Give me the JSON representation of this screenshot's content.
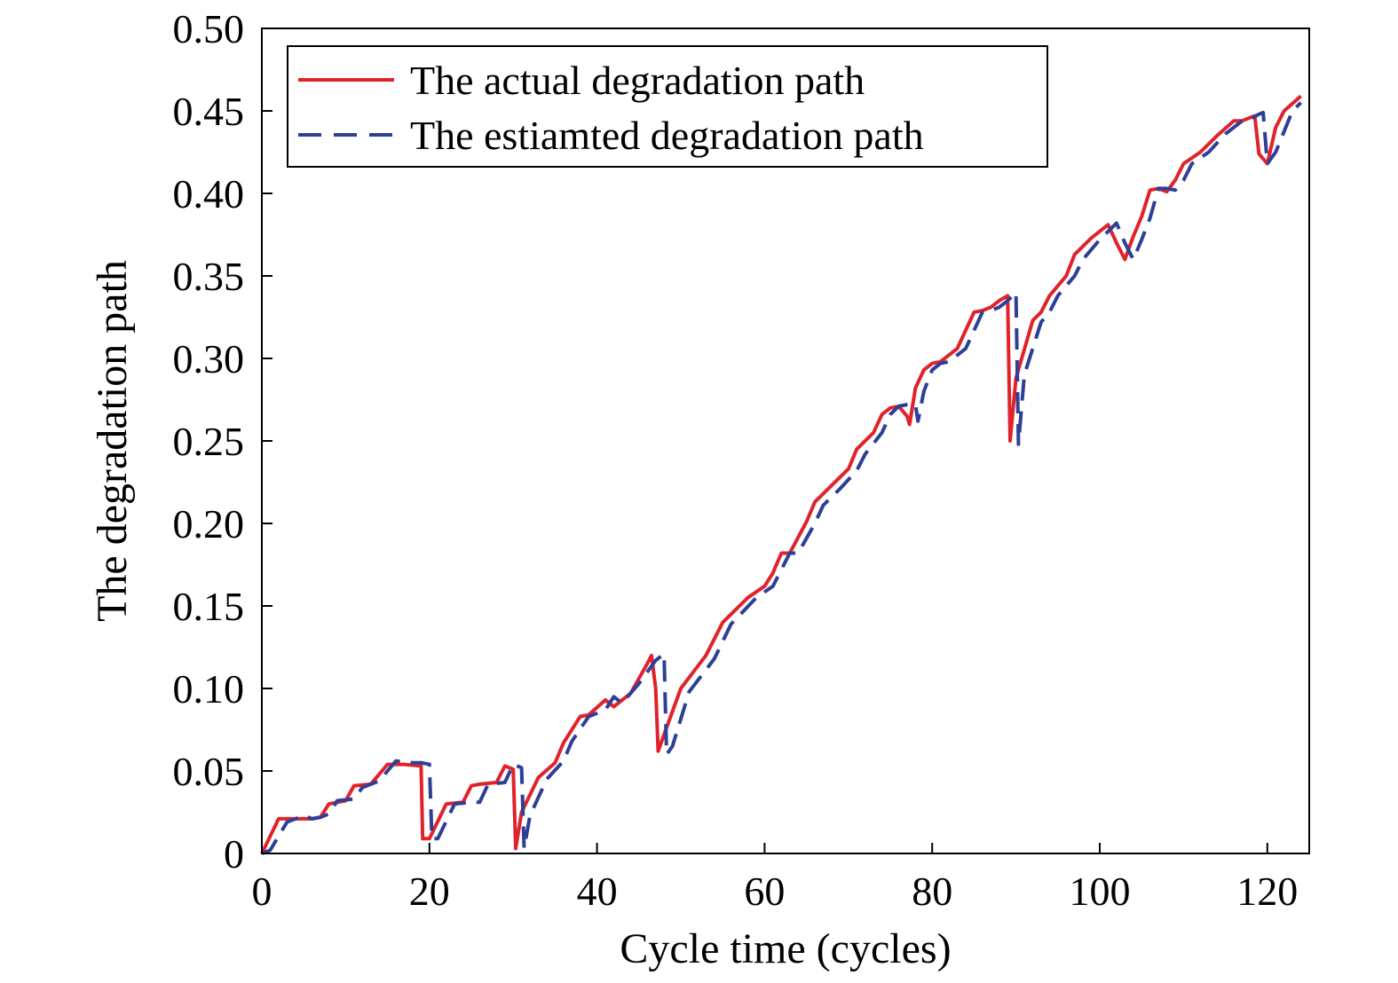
{
  "chart_data": {
    "type": "line",
    "xlabel": "Cycle time (cycles)",
    "ylabel": "The degradation path",
    "xlim": [
      0,
      125
    ],
    "ylim": [
      0,
      0.5
    ],
    "xticks": [
      0,
      20,
      40,
      60,
      80,
      100,
      120
    ],
    "xtick_labels": [
      "0",
      "20",
      "40",
      "60",
      "80",
      "100",
      "120"
    ],
    "yticks": [
      0,
      0.05,
      0.1,
      0.15,
      0.2,
      0.25,
      0.3,
      0.35,
      0.4,
      0.45,
      0.5
    ],
    "ytick_labels": [
      "0",
      "0.05",
      "0.10",
      "0.15",
      "0.20",
      "0.25",
      "0.30",
      "0.35",
      "0.40",
      "0.45",
      "0.50"
    ],
    "grid": false,
    "legend_position": "top-left",
    "series": [
      {
        "name": "The actual degradation path",
        "color": "#e0232b",
        "dash": "solid",
        "x": [
          0,
          2,
          4,
          6,
          7,
          8,
          10,
          11,
          13,
          15,
          17,
          19,
          19.2,
          20,
          22,
          24,
          25,
          26,
          28,
          29,
          30,
          30.3,
          31,
          33,
          35,
          36,
          38,
          39,
          41,
          42,
          44,
          46,
          46.5,
          47,
          47.3,
          48,
          50,
          53,
          55,
          58,
          60,
          61,
          62,
          63,
          65,
          66,
          68,
          70,
          71,
          73,
          74,
          75,
          76,
          77,
          77.3,
          78,
          79,
          80,
          81,
          83,
          85,
          86,
          87,
          88,
          89,
          89.3,
          90,
          92,
          93,
          94,
          96,
          97,
          99,
          101,
          102,
          103,
          104,
          105,
          106,
          107,
          108,
          109,
          110,
          112,
          114,
          116,
          117,
          118,
          118.5,
          119,
          120,
          121,
          122,
          124
        ],
        "y": [
          0,
          0.021,
          0.021,
          0.021,
          0.022,
          0.03,
          0.032,
          0.041,
          0.042,
          0.054,
          0.054,
          0.053,
          0.009,
          0.009,
          0.03,
          0.031,
          0.041,
          0.042,
          0.043,
          0.053,
          0.051,
          0.003,
          0.025,
          0.046,
          0.055,
          0.067,
          0.083,
          0.084,
          0.093,
          0.089,
          0.097,
          0.115,
          0.12,
          0.1,
          0.062,
          0.072,
          0.1,
          0.12,
          0.14,
          0.155,
          0.162,
          0.17,
          0.182,
          0.182,
          0.201,
          0.213,
          0.223,
          0.233,
          0.245,
          0.255,
          0.266,
          0.27,
          0.271,
          0.265,
          0.26,
          0.282,
          0.293,
          0.297,
          0.298,
          0.306,
          0.328,
          0.329,
          0.331,
          0.335,
          0.338,
          0.25,
          0.288,
          0.323,
          0.328,
          0.338,
          0.35,
          0.363,
          0.373,
          0.381,
          0.37,
          0.36,
          0.374,
          0.386,
          0.402,
          0.403,
          0.401,
          0.408,
          0.418,
          0.425,
          0.435,
          0.444,
          0.444,
          0.446,
          0.447,
          0.424,
          0.418,
          0.44,
          0.45,
          0.459
        ]
      },
      {
        "name": "The estiamted degradation path",
        "color": "#2e3f98",
        "dash": "dashed",
        "x": [
          0,
          1,
          3,
          5,
          6,
          7,
          8,
          9,
          11,
          12,
          14,
          16,
          18,
          19,
          20,
          20.3,
          21,
          23,
          25,
          26,
          27,
          29,
          30,
          31,
          31.3,
          32,
          34,
          36,
          37,
          39,
          41,
          42,
          43,
          45,
          47,
          48,
          48.3,
          49,
          51,
          54,
          56,
          59,
          61,
          62,
          63,
          64,
          66,
          67,
          69,
          71,
          72,
          74,
          75,
          76,
          77,
          78,
          78.3,
          79,
          80,
          81,
          82,
          84,
          86,
          87,
          88,
          89,
          90,
          90.3,
          91,
          93,
          94,
          95,
          97,
          98,
          100,
          102,
          103,
          104,
          105,
          106,
          107,
          108,
          109,
          110,
          111,
          113,
          115,
          117,
          118,
          119,
          119.5,
          120,
          121,
          123,
          124
        ],
        "y": [
          0,
          0.002,
          0.019,
          0.023,
          0.021,
          0.022,
          0.024,
          0.032,
          0.033,
          0.04,
          0.044,
          0.056,
          0.055,
          0.055,
          0.054,
          0.009,
          0.009,
          0.03,
          0.031,
          0.031,
          0.042,
          0.043,
          0.054,
          0.052,
          0.003,
          0.023,
          0.045,
          0.056,
          0.068,
          0.083,
          0.087,
          0.095,
          0.091,
          0.103,
          0.117,
          0.121,
          0.06,
          0.065,
          0.098,
          0.118,
          0.139,
          0.155,
          0.162,
          0.172,
          0.182,
          0.182,
          0.2,
          0.211,
          0.221,
          0.232,
          0.242,
          0.255,
          0.266,
          0.271,
          0.272,
          0.272,
          0.262,
          0.28,
          0.293,
          0.297,
          0.298,
          0.306,
          0.328,
          0.329,
          0.331,
          0.335,
          0.34,
          0.248,
          0.29,
          0.322,
          0.328,
          0.338,
          0.35,
          0.36,
          0.372,
          0.382,
          0.37,
          0.36,
          0.372,
          0.385,
          0.403,
          0.403,
          0.402,
          0.408,
          0.418,
          0.425,
          0.436,
          0.444,
          0.445,
          0.448,
          0.449,
          0.418,
          0.425,
          0.45,
          0.455
        ]
      }
    ]
  }
}
